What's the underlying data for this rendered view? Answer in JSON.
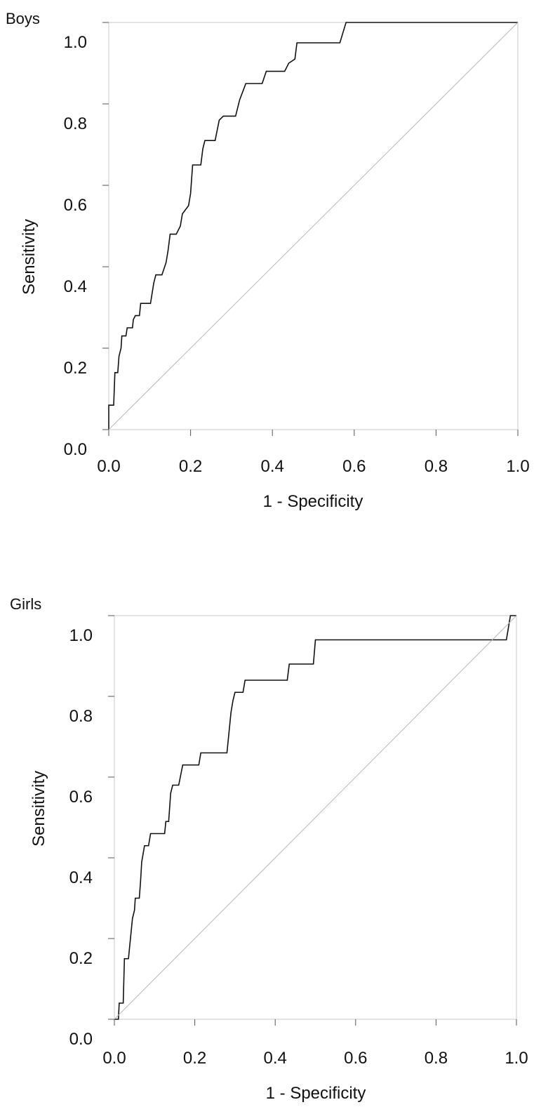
{
  "chart_data": [
    {
      "type": "line",
      "panel_label": "Boys",
      "xlabel": "1 - Specificity",
      "ylabel": "Sensitivity",
      "xlim": [
        0,
        1
      ],
      "ylim": [
        0,
        1
      ],
      "x_ticks": [
        "0.0",
        "0.2",
        "0.4",
        "0.6",
        "0.8",
        "1.0"
      ],
      "y_ticks": [
        "0.0",
        "0.2",
        "0.4",
        "0.6",
        "0.8",
        "1.0"
      ],
      "grid": false,
      "series": [
        {
          "step": true,
          "points": [
            [
              0.0,
              0.0
            ],
            [
              0.0,
              0.06
            ],
            [
              0.012,
              0.06
            ],
            [
              0.015,
              0.14
            ],
            [
              0.022,
              0.14
            ],
            [
              0.025,
              0.18
            ],
            [
              0.03,
              0.2
            ],
            [
              0.032,
              0.23
            ],
            [
              0.042,
              0.23
            ],
            [
              0.045,
              0.25
            ],
            [
              0.058,
              0.25
            ],
            [
              0.06,
              0.27
            ],
            [
              0.065,
              0.28
            ],
            [
              0.075,
              0.28
            ],
            [
              0.078,
              0.31
            ],
            [
              0.102,
              0.31
            ],
            [
              0.11,
              0.36
            ],
            [
              0.115,
              0.38
            ],
            [
              0.13,
              0.38
            ],
            [
              0.14,
              0.41
            ],
            [
              0.145,
              0.44
            ],
            [
              0.15,
              0.48
            ],
            [
              0.165,
              0.48
            ],
            [
              0.175,
              0.5
            ],
            [
              0.18,
              0.53
            ],
            [
              0.195,
              0.55
            ],
            [
              0.2,
              0.58
            ],
            [
              0.205,
              0.65
            ],
            [
              0.225,
              0.65
            ],
            [
              0.23,
              0.69
            ],
            [
              0.235,
              0.71
            ],
            [
              0.26,
              0.71
            ],
            [
              0.27,
              0.76
            ],
            [
              0.28,
              0.77
            ],
            [
              0.29,
              0.77
            ],
            [
              0.31,
              0.77
            ],
            [
              0.32,
              0.81
            ],
            [
              0.335,
              0.85
            ],
            [
              0.375,
              0.85
            ],
            [
              0.385,
              0.88
            ],
            [
              0.43,
              0.88
            ],
            [
              0.44,
              0.9
            ],
            [
              0.455,
              0.91
            ],
            [
              0.46,
              0.95
            ],
            [
              0.565,
              0.95
            ],
            [
              0.58,
              1.0
            ],
            [
              1.0,
              1.0
            ]
          ]
        },
        {
          "reference": true,
          "points": [
            [
              0,
              0
            ],
            [
              1,
              1
            ]
          ]
        }
      ]
    },
    {
      "type": "line",
      "panel_label": "Girls",
      "xlabel": "1 - Specificity",
      "ylabel": "Sensitivity",
      "xlim": [
        0,
        1
      ],
      "ylim": [
        0,
        1
      ],
      "x_ticks": [
        "0.0",
        "0.2",
        "0.4",
        "0.6",
        "0.8",
        "1.0"
      ],
      "y_ticks": [
        "0.0",
        "0.2",
        "0.4",
        "0.6",
        "0.8",
        "1.0"
      ],
      "grid": false,
      "series": [
        {
          "step": true,
          "points": [
            [
              0.0,
              0.0
            ],
            [
              0.01,
              0.0
            ],
            [
              0.012,
              0.04
            ],
            [
              0.022,
              0.04
            ],
            [
              0.025,
              0.15
            ],
            [
              0.035,
              0.15
            ],
            [
              0.04,
              0.2
            ],
            [
              0.045,
              0.25
            ],
            [
              0.05,
              0.27
            ],
            [
              0.052,
              0.3
            ],
            [
              0.062,
              0.3
            ],
            [
              0.065,
              0.34
            ],
            [
              0.068,
              0.39
            ],
            [
              0.075,
              0.43
            ],
            [
              0.085,
              0.43
            ],
            [
              0.09,
              0.46
            ],
            [
              0.125,
              0.46
            ],
            [
              0.128,
              0.49
            ],
            [
              0.135,
              0.49
            ],
            [
              0.14,
              0.56
            ],
            [
              0.145,
              0.58
            ],
            [
              0.16,
              0.58
            ],
            [
              0.17,
              0.63
            ],
            [
              0.21,
              0.63
            ],
            [
              0.215,
              0.66
            ],
            [
              0.28,
              0.66
            ],
            [
              0.29,
              0.76
            ],
            [
              0.295,
              0.79
            ],
            [
              0.3,
              0.81
            ],
            [
              0.32,
              0.81
            ],
            [
              0.325,
              0.84
            ],
            [
              0.43,
              0.84
            ],
            [
              0.435,
              0.88
            ],
            [
              0.495,
              0.88
            ],
            [
              0.5,
              0.94
            ],
            [
              0.975,
              0.94
            ],
            [
              0.985,
              1.0
            ],
            [
              1.0,
              1.0
            ]
          ]
        },
        {
          "reference": true,
          "points": [
            [
              0,
              0
            ],
            [
              1,
              1
            ]
          ]
        }
      ]
    }
  ],
  "colors": {
    "curve": "#111111",
    "reference_line": "#b8b8b8",
    "frame": "#c8c8c8",
    "tick": "#555555"
  }
}
